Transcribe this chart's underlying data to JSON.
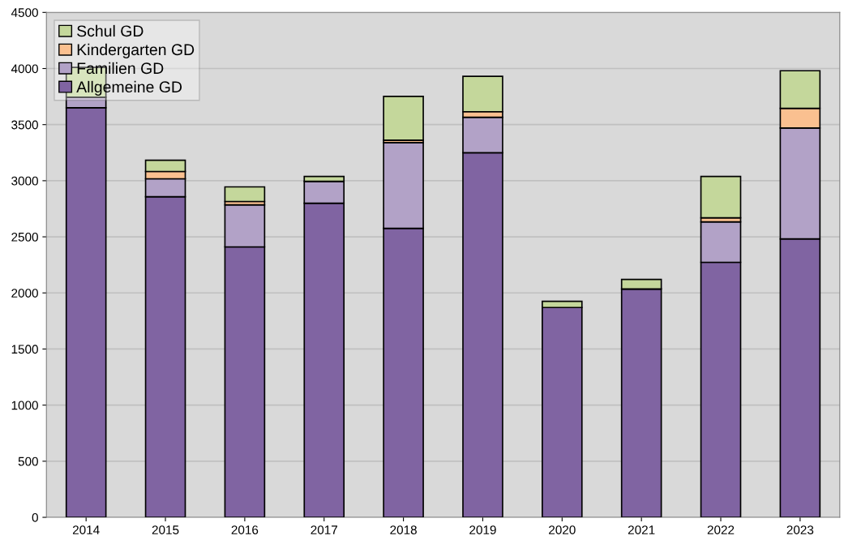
{
  "chart_data": {
    "type": "bar",
    "stacked": true,
    "categories": [
      "2014",
      "2015",
      "2016",
      "2017",
      "2018",
      "2019",
      "2020",
      "2021",
      "2022",
      "2023"
    ],
    "series": [
      {
        "name": "Allgemeine GD",
        "color": "#8064a2",
        "values": [
          3650,
          2857,
          2410,
          2800,
          2576,
          3250,
          1870,
          2035,
          2273,
          2482
        ]
      },
      {
        "name": "Familien GD",
        "color": "#b2a2c7",
        "values": [
          95,
          160,
          375,
          195,
          764,
          315,
          0,
          0,
          360,
          988
        ]
      },
      {
        "name": "Kindergarten GD",
        "color": "#fac090",
        "values": [
          0,
          65,
          30,
          0,
          22,
          50,
          0,
          0,
          37,
          175
        ]
      },
      {
        "name": "Schul GD",
        "color": "#c4d79b",
        "values": [
          265,
          100,
          130,
          43,
          390,
          315,
          55,
          85,
          368,
          335
        ]
      }
    ],
    "ylim": [
      0,
      4500
    ],
    "yticks": [
      0,
      500,
      1000,
      1500,
      2000,
      2500,
      3000,
      3500,
      4000,
      4500
    ],
    "grid": "y",
    "legend": "top left"
  }
}
